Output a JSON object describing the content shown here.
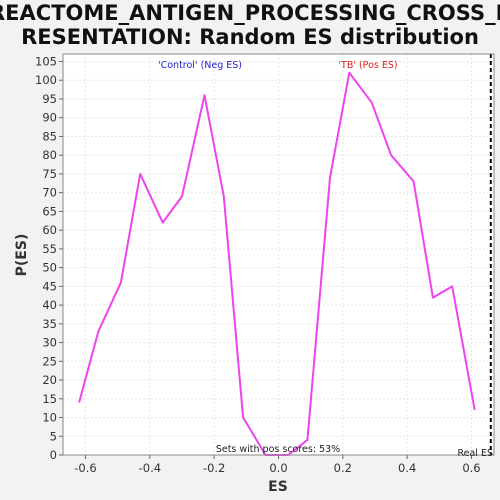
{
  "chart_data": {
    "type": "line",
    "title_lines": [
      "REACTOME_ANTIGEN_PROCESSING_CROSS_P",
      "RESENTATION: Random ES distribution"
    ],
    "xlabel": "ES",
    "ylabel": "P(ES)",
    "xlim": [
      -0.67,
      0.67
    ],
    "ylim": [
      0,
      107
    ],
    "x_ticks": [
      "-0.6",
      "-0.4",
      "-0.2",
      "0.0",
      "0.2",
      "0.4",
      "0.6"
    ],
    "x_tick_values": [
      -0.6,
      -0.4,
      -0.2,
      0.0,
      0.2,
      0.4,
      0.6
    ],
    "y_ticks": [
      0,
      5,
      10,
      15,
      20,
      25,
      30,
      35,
      40,
      45,
      50,
      55,
      60,
      65,
      70,
      75,
      80,
      85,
      90,
      95,
      100,
      105
    ],
    "grid": true,
    "series": [
      {
        "color": "#ee44ee",
        "x": [
          -0.62,
          -0.56,
          -0.49,
          -0.43,
          -0.36,
          -0.3,
          -0.23,
          -0.17,
          -0.11,
          -0.04,
          0.03,
          0.09,
          0.16,
          0.22,
          0.29,
          0.35,
          0.42,
          0.48,
          0.54,
          0.61
        ],
        "y": [
          14,
          33,
          46,
          75,
          62,
          69,
          96,
          69,
          10,
          0,
          0,
          4,
          74,
          102,
          94,
          80,
          73,
          42,
          45,
          12
        ]
      }
    ],
    "annotations": {
      "neg_label": "'Control' (Neg ES)",
      "neg_color": "#2222cc",
      "pos_label": "'TB' (Pos ES)",
      "pos_color": "#dd2222",
      "pos_scores": "Sets with pos scores: 53%",
      "real_es": "Real ES",
      "real_es_x": 0.66
    }
  }
}
